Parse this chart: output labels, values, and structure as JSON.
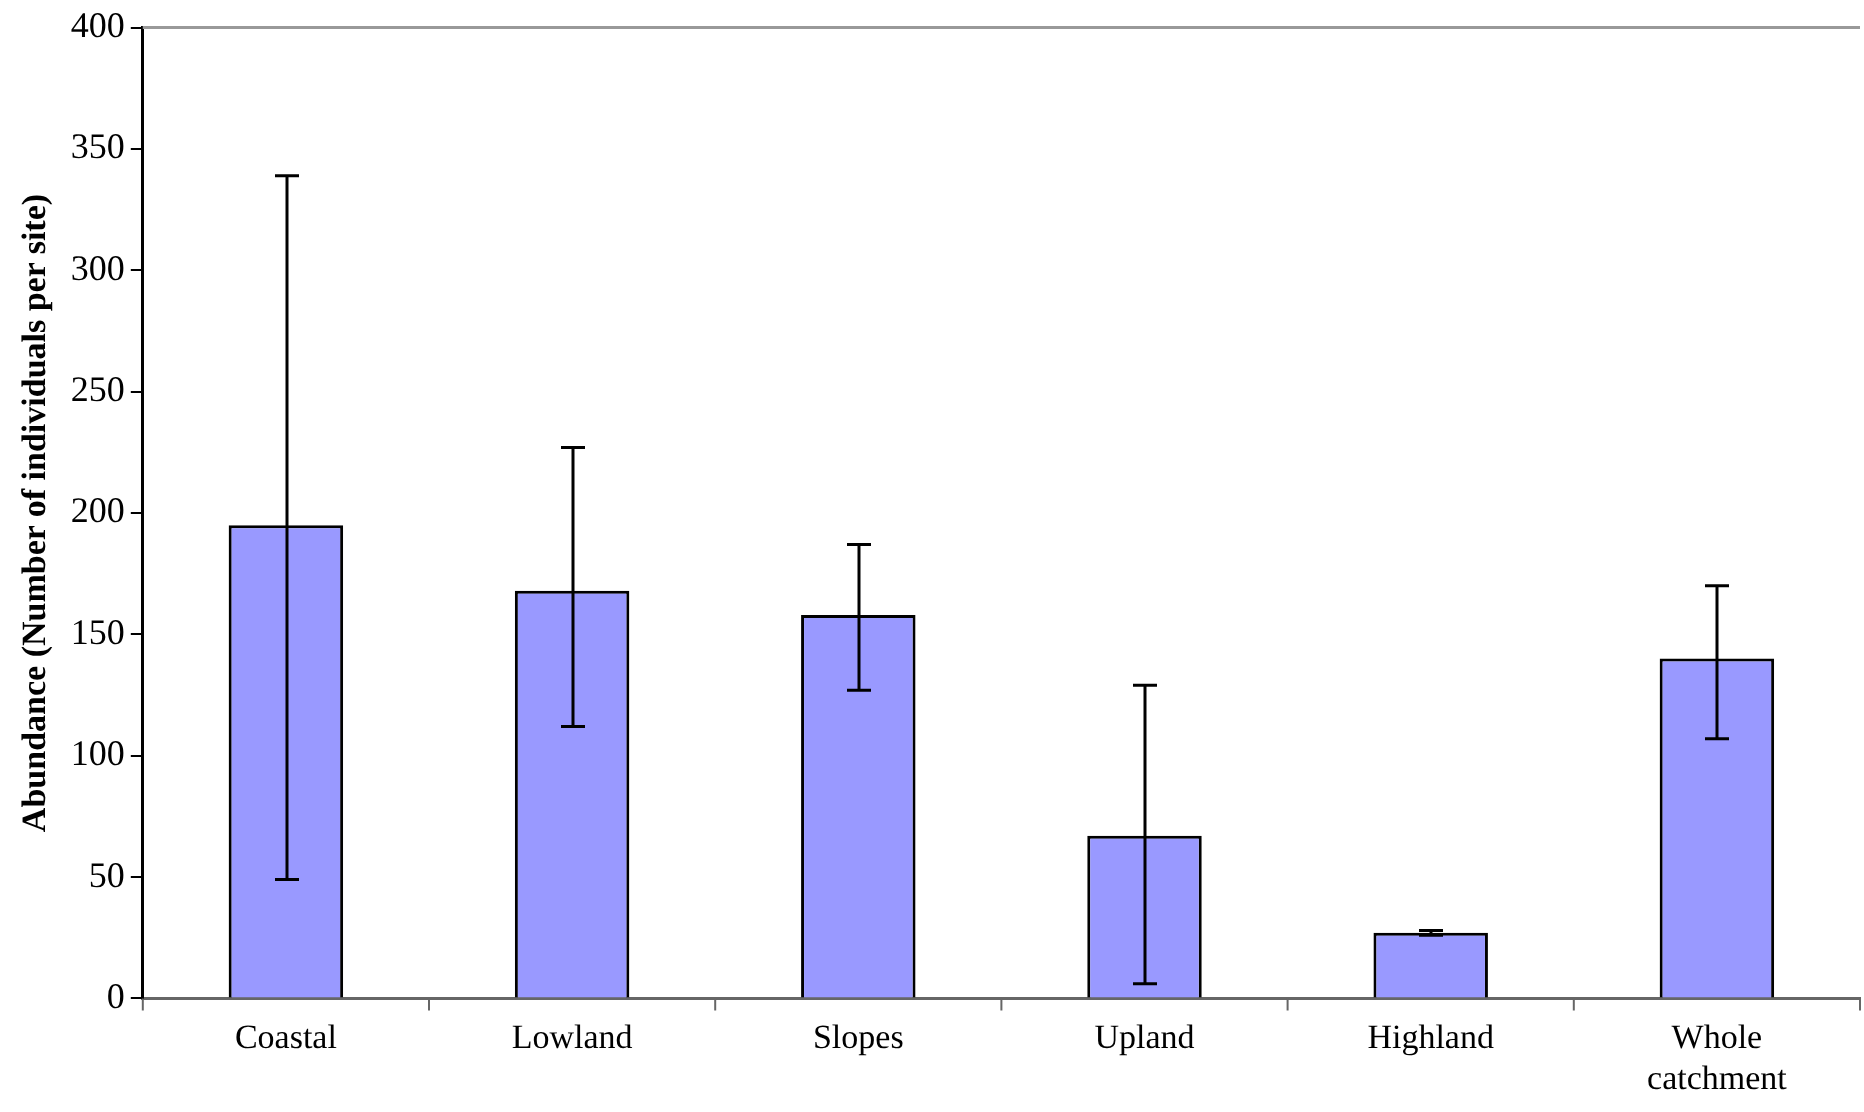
{
  "chart_data": {
    "type": "bar",
    "ylabel": "Abundance (Number of individuals per site)",
    "categories": [
      "Coastal",
      "Lowland",
      "Slopes",
      "Upland",
      "Highland",
      "Whole catchment"
    ],
    "values": [
      195,
      168,
      158,
      67,
      27,
      140
    ],
    "errors": [
      [
        49,
        339
      ],
      [
        112,
        227
      ],
      [
        127,
        187
      ],
      [
        6,
        129
      ],
      [
        26,
        28
      ],
      [
        107,
        170
      ]
    ],
    "color": "#9999ff",
    "ylim": [
      0,
      400
    ],
    "yticks": [
      0,
      50,
      100,
      150,
      200,
      250,
      300,
      350,
      400
    ],
    "grid": false,
    "legend": false
  }
}
